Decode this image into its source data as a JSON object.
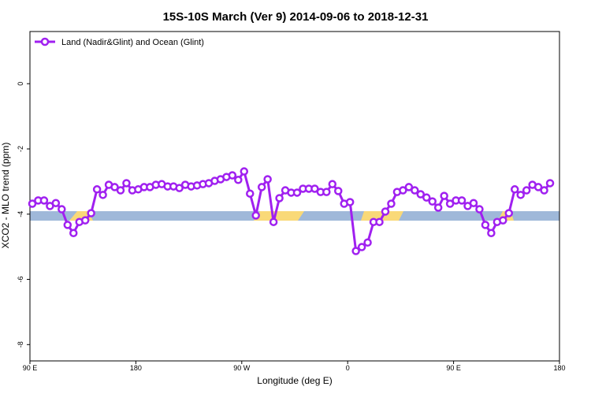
{
  "chart_data": {
    "type": "line",
    "title": "15S-10S March (Ver 9)   2014-09-06 to 2018-12-31",
    "x_label": "Longitude (deg E)",
    "y_label": "XCO2 - MLO trend (ppm)",
    "xlim": [
      90,
      540
    ],
    "ylim": [
      -8.5,
      1.6
    ],
    "xticks": [
      {
        "value": 90,
        "label": "90 E"
      },
      180,
      {
        "value": 270,
        "label": "90 W"
      },
      {
        "value": 360,
        "label": "0"
      },
      {
        "value": 450,
        "label": "90 E"
      },
      {
        "value": 540,
        "label": "180"
      }
    ],
    "yticks": [
      0,
      -2,
      -4,
      -6,
      -8
    ],
    "legend": "top-left",
    "series": [
      {
        "name": "Land (Nadir&Glint) and Ocean (Glint)",
        "color": "#a020f0",
        "x": [
          92,
          97,
          102,
          107,
          112,
          117,
          122,
          127,
          132,
          137,
          142,
          147,
          152,
          157,
          162,
          167,
          172,
          177,
          182,
          187,
          192,
          197,
          202,
          207,
          212,
          217,
          222,
          227,
          232,
          237,
          242,
          247,
          252,
          257,
          262,
          267,
          272,
          277,
          282,
          287,
          292,
          297,
          302,
          307,
          312,
          317,
          322,
          327,
          332,
          337,
          342,
          347,
          352,
          357,
          362,
          367,
          372,
          377,
          382,
          387,
          392,
          397,
          402,
          407,
          412,
          417,
          422,
          427,
          432,
          437,
          442,
          447,
          452,
          457,
          462,
          467,
          472,
          477,
          482,
          487,
          492,
          497,
          502,
          507,
          512,
          517,
          522,
          527,
          532
        ],
        "values": [
          -3.68,
          -3.58,
          -3.58,
          -3.75,
          -3.66,
          -3.85,
          -4.33,
          -4.58,
          -4.24,
          -4.19,
          -3.97,
          -3.24,
          -3.41,
          -3.1,
          -3.17,
          -3.27,
          -3.05,
          -3.27,
          -3.24,
          -3.17,
          -3.17,
          -3.1,
          -3.08,
          -3.15,
          -3.15,
          -3.2,
          -3.1,
          -3.15,
          -3.12,
          -3.08,
          -3.05,
          -2.98,
          -2.93,
          -2.86,
          -2.81,
          -2.95,
          -2.69,
          -3.37,
          -4.04,
          -3.17,
          -2.93,
          -4.24,
          -3.51,
          -3.27,
          -3.34,
          -3.34,
          -3.22,
          -3.22,
          -3.22,
          -3.32,
          -3.32,
          -3.08,
          -3.29,
          -3.68,
          -3.63,
          -5.13,
          -5.01,
          -4.87,
          -4.24,
          -4.24,
          -3.92,
          -3.68,
          -3.32,
          -3.27,
          -3.17,
          -3.27,
          -3.39,
          -3.49,
          -3.61,
          -3.8,
          -3.44,
          -3.68,
          -3.58,
          -3.58,
          -3.75,
          -3.66,
          -3.85,
          -4.33,
          -4.58,
          -4.24,
          -4.19,
          -3.97,
          -3.24,
          -3.41,
          -3.27,
          -3.1,
          -3.17,
          -3.27,
          -3.05
        ]
      }
    ]
  }
}
